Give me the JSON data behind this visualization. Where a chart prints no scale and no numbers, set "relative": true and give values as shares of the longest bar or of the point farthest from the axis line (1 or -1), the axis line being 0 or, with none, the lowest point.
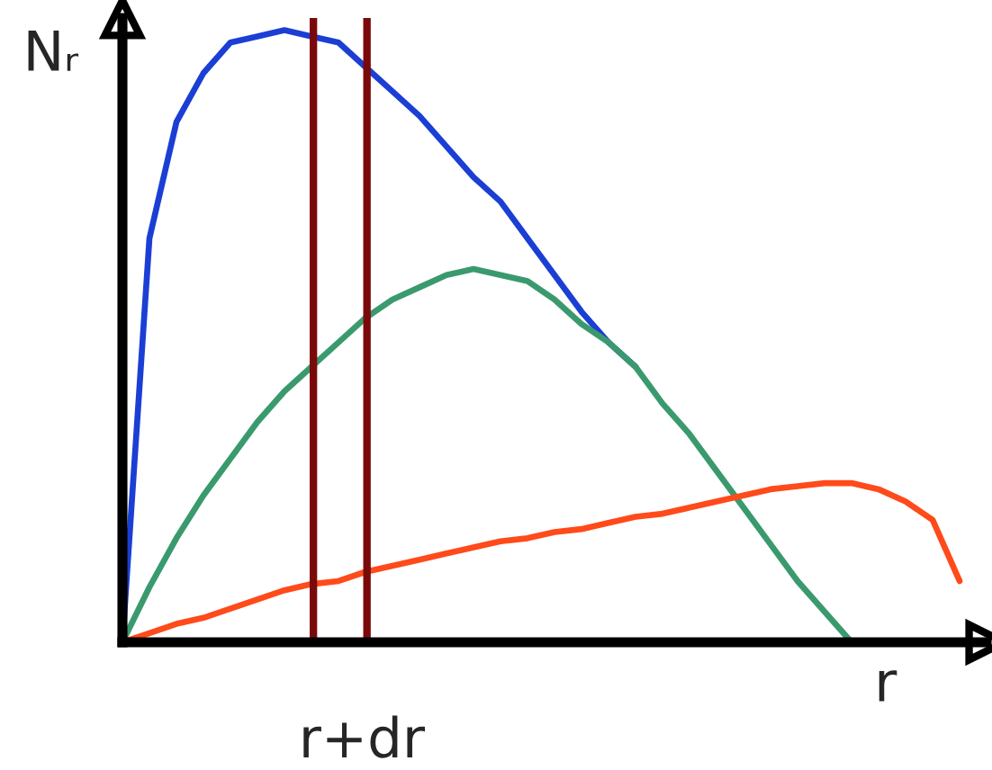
{
  "chart_data": {
    "type": "line",
    "relative": true,
    "xlabel": "r",
    "ylabel": "Nᵣ",
    "marker": "none",
    "line_style": "solid",
    "categories": [
      null,
      null,
      null,
      null,
      null,
      null,
      null,
      null,
      null,
      null,
      null,
      null,
      null,
      null,
      null,
      null,
      null,
      null,
      null,
      null,
      null,
      null,
      null,
      null,
      null,
      null,
      null,
      null,
      null,
      null,
      null,
      null,
      null
    ],
    "series": [
      {
        "color": "#1b3fd4",
        "values": [
          0,
          0.66,
          0.85,
          0.93,
          0.98,
          0.99,
          1,
          0.99,
          0.98,
          0.94,
          0.9,
          0.86,
          0.81,
          0.76,
          0.72,
          0.66,
          0.6,
          0.54,
          0.49,
          0.45,
          null,
          null,
          null,
          null,
          null,
          null,
          null,
          null,
          null,
          null,
          null,
          null,
          null
        ]
      },
      {
        "color": "#3a9a6e",
        "values": [
          0,
          0.09,
          0.17,
          0.24,
          0.3,
          0.36,
          0.41,
          0.45,
          0.49,
          0.53,
          0.56,
          0.58,
          0.6,
          0.61,
          0.6,
          0.59,
          0.56,
          0.52,
          0.49,
          0.45,
          0.39,
          0.34,
          0.28,
          0.22,
          0.16,
          0.1,
          0.05,
          0,
          null,
          null,
          null,
          null,
          null
        ]
      },
      {
        "color": "#ff4a1a",
        "values": [
          0,
          0.015,
          0.03,
          0.04,
          0.055,
          0.07,
          0.085,
          0.095,
          0.1,
          0.115,
          0.125,
          0.135,
          0.145,
          0.155,
          0.165,
          0.17,
          0.18,
          0.185,
          0.195,
          0.205,
          0.21,
          0.22,
          0.23,
          0.24,
          0.25,
          0.255,
          0.26,
          0.26,
          0.25,
          0.23,
          0.2,
          0.1,
          null
        ]
      }
    ],
    "annotations": [
      "r+dr"
    ]
  }
}
